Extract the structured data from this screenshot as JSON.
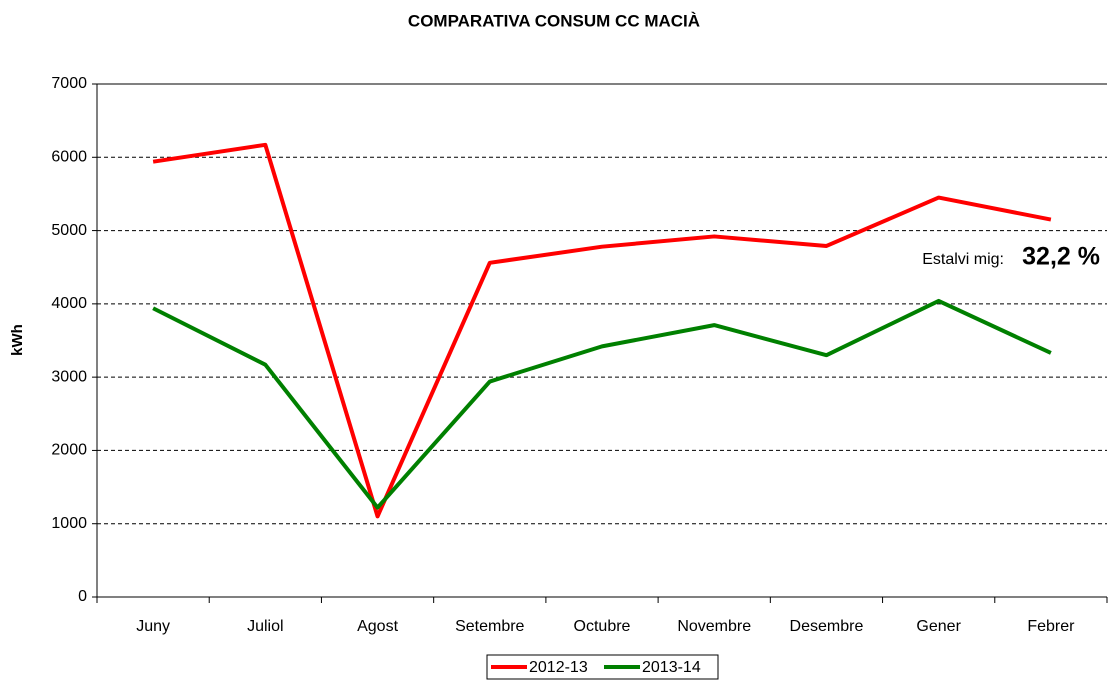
{
  "chart_data": {
    "type": "line",
    "title": "COMPARATIVA CONSUM CC MACIÀ",
    "ylabel": "kWh",
    "categories": [
      "Juny",
      "Juliol",
      "Agost",
      "Setembre",
      "Octubre",
      "Novembre",
      "Desembre",
      "Gener",
      "Febrer"
    ],
    "series": [
      {
        "name": "2012-13",
        "color": "#ff0000",
        "values": [
          5940,
          6170,
          1100,
          4560,
          4780,
          4920,
          4790,
          5450,
          5150
        ]
      },
      {
        "name": "2013-14",
        "color": "#008000",
        "values": [
          3940,
          3170,
          1220,
          2940,
          3420,
          3710,
          3300,
          4040,
          3330
        ]
      }
    ],
    "ylim": [
      0,
      7000
    ],
    "yticks": [
      0,
      1000,
      2000,
      3000,
      4000,
      5000,
      6000,
      7000
    ],
    "grid": true,
    "annotation": {
      "label": "Estalvi mig:",
      "value": "32,2 %"
    },
    "legend": "bottom"
  }
}
